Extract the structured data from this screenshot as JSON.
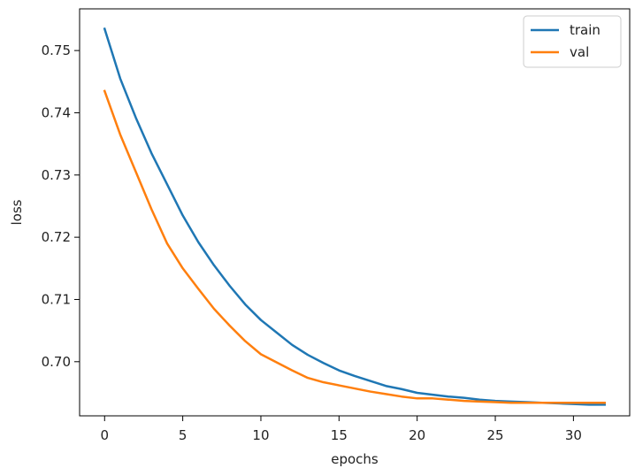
{
  "chart_data": {
    "type": "line",
    "title": "",
    "xlabel": "epochs",
    "ylabel": "loss",
    "xlim": [
      -1.6,
      33.6
    ],
    "ylim": [
      0.6913,
      0.7567
    ],
    "xticks": [
      0,
      5,
      10,
      15,
      20,
      25,
      30
    ],
    "yticks": [
      0.7,
      0.71,
      0.72,
      0.73,
      0.74,
      0.75
    ],
    "grid": false,
    "legend_position": "top-right",
    "x": [
      0,
      1,
      2,
      3,
      4,
      5,
      6,
      7,
      8,
      9,
      10,
      11,
      12,
      13,
      14,
      15,
      16,
      17,
      18,
      19,
      20,
      21,
      22,
      23,
      24,
      25,
      26,
      27,
      28,
      29,
      30,
      31,
      32
    ],
    "series": [
      {
        "name": "train",
        "color": "#1f77b4",
        "values": [
          0.7535,
          0.7455,
          0.7392,
          0.7335,
          0.7285,
          0.7235,
          0.7192,
          0.7155,
          0.7122,
          0.7092,
          0.7067,
          0.7047,
          0.7027,
          0.7011,
          0.6998,
          0.6986,
          0.6977,
          0.6969,
          0.6961,
          0.6956,
          0.695,
          0.6947,
          0.6944,
          0.6942,
          0.6939,
          0.6937,
          0.6936,
          0.6935,
          0.6934,
          0.6933,
          0.6932,
          0.6931,
          0.6931
        ]
      },
      {
        "name": "val",
        "color": "#ff7f0e",
        "values": [
          0.7435,
          0.7365,
          0.7305,
          0.7245,
          0.719,
          0.715,
          0.7117,
          0.7085,
          0.7058,
          0.7033,
          0.7012,
          0.6999,
          0.6986,
          0.6974,
          0.6967,
          0.6962,
          0.6957,
          0.6952,
          0.6948,
          0.6944,
          0.6941,
          0.6941,
          0.6939,
          0.6937,
          0.6936,
          0.6935,
          0.6934,
          0.6934,
          0.6934,
          0.6934,
          0.6934,
          0.6934,
          0.6934
        ]
      }
    ]
  }
}
